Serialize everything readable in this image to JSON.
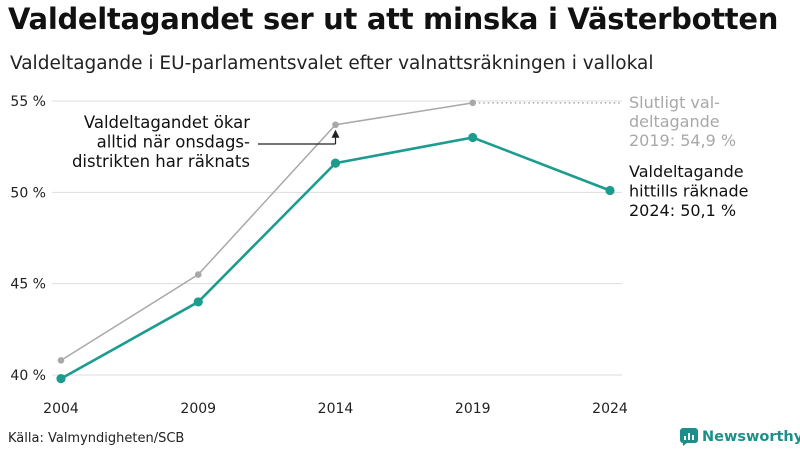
{
  "header": {
    "title": "Valdeltagandet ser ut att minska i Västerbotten",
    "subtitle": "Valdeltagande i EU-parlamentsvalet efter valnattsräkningen i vallokal"
  },
  "footer": {
    "source": "Källa: Valmyndigheten/SCB",
    "brand": "Newsworthy"
  },
  "colors": {
    "current": "#1c9c8f",
    "final": "#a8a8a8",
    "grid": "#dddddd",
    "brand": "#1c8f8a"
  },
  "chart_data": {
    "type": "line",
    "x": [
      "2004",
      "2009",
      "2014",
      "2019",
      "2024"
    ],
    "ylim": [
      40,
      55
    ],
    "yticks": [
      40,
      45,
      50,
      55
    ],
    "ytick_labels": [
      "40 %",
      "45 %",
      "50 %",
      "55 %"
    ],
    "grid": true,
    "series": [
      {
        "key": "final",
        "values": [
          40.8,
          45.5,
          53.7,
          54.9,
          null
        ]
      },
      {
        "key": "current",
        "values": [
          39.8,
          44.0,
          51.6,
          53.0,
          50.1
        ]
      }
    ],
    "annotations": {
      "left_note": [
        "Valdeltagandet ökar",
        "alltid när onsdags-",
        "distrikten har räknats"
      ],
      "final_label": [
        "Slutligt val-",
        "deltagande",
        "2019: 54,9 %"
      ],
      "current_label": [
        "Valdeltagande",
        "hittills räknade",
        "2024: 50,1 %"
      ]
    }
  }
}
